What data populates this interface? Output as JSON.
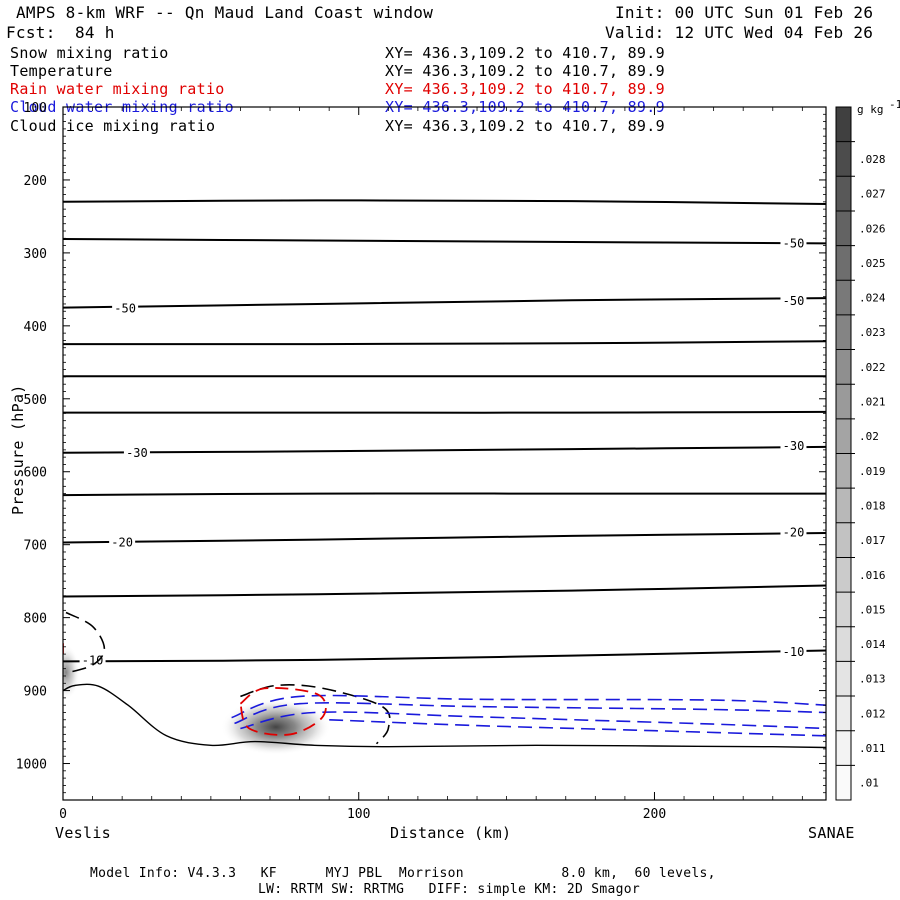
{
  "header": {
    "title": "AMPS 8-km WRF -- Qn Maud Land Coast window",
    "init": "Init: 00 UTC Sun 01 Feb 26",
    "fcst_label": "Fcst:",
    "fcst_value": "84 h",
    "valid": "Valid: 12 UTC Wed 04 Feb 26"
  },
  "fields": [
    {
      "name": "Snow mixing ratio",
      "coords": "XY= 436.3,109.2 to 410.7, 89.9",
      "color": "#000000"
    },
    {
      "name": "Temperature",
      "coords": "XY= 436.3,109.2 to 410.7, 89.9",
      "color": "#000000"
    },
    {
      "name": "Rain water mixing ratio",
      "coords": "XY= 436.3,109.2 to 410.7, 89.9",
      "color": "#e00000"
    },
    {
      "name": "Cloud water mixing ratio",
      "coords": "XY= 436.3,109.2 to 410.7, 89.9",
      "color": "#1a1adc"
    },
    {
      "name": "Cloud ice mixing ratio",
      "coords": "XY= 436.3,109.2 to 410.7, 89.9",
      "color": "#000000"
    }
  ],
  "footer": {
    "line1": "Model Info: V4.3.3   KF      MYJ PBL  Morrison            8.0 km,  60 levels,",
    "line2": "LW: RRTM SW: RRTMG   DIFF: simple KM: 2D Smagor"
  },
  "chart_data": {
    "type": "cross-section",
    "title": "AMPS 8-km WRF -- Qn Maud Land Coast window",
    "xlabel": "Distance (km)",
    "ylabel": "Pressure (hPa)",
    "xlim": [
      0,
      258
    ],
    "ylim": [
      1050,
      100
    ],
    "x_ticks": [
      0,
      100,
      200
    ],
    "y_ticks": [
      100,
      200,
      300,
      400,
      500,
      600,
      700,
      800,
      900,
      1000
    ],
    "x_endpoint_labels": {
      "left": "Veslis",
      "right": "SANAE"
    },
    "colorbar": {
      "unit_label": "g kg",
      "unit_exponent": "-1",
      "levels": [
        ".01",
        ".011",
        ".012",
        ".013",
        ".014",
        ".015",
        ".016",
        ".017",
        ".018",
        ".019",
        ".02",
        ".021",
        ".022",
        ".023",
        ".024",
        ".025",
        ".026",
        ".027",
        ".028"
      ],
      "colors": [
        "#fafafa",
        "#f3f3f3",
        "#ececec",
        "#e4e4e4",
        "#dcdcdc",
        "#d4d4d4",
        "#cbcbcb",
        "#c2c2c2",
        "#b8b8b8",
        "#aeaeae",
        "#a4a4a4",
        "#9a9a9a",
        "#8f8f8f",
        "#848484",
        "#797979",
        "#6e6e6e",
        "#636363",
        "#585858",
        "#4c4c4c",
        "#404040"
      ]
    },
    "temperature_contours": [
      {
        "label": "",
        "points": [
          [
            0,
            230
          ],
          [
            86,
            228
          ],
          [
            172,
            229
          ],
          [
            258,
            233
          ]
        ]
      },
      {
        "label": "-50",
        "label_pos": [
          247,
          287
        ],
        "points": [
          [
            0,
            281
          ],
          [
            86,
            283
          ],
          [
            172,
            285
          ],
          [
            258,
            287
          ]
        ]
      },
      {
        "label": "-50",
        "label_pos": [
          21,
          376
        ],
        "points": [
          [
            0,
            375
          ],
          [
            86,
            370
          ],
          [
            172,
            365
          ],
          [
            258,
            362
          ]
        ]
      },
      {
        "label": "-50",
        "label_pos": [
          247,
          366
        ],
        "points": [
          [
            0,
            425
          ],
          [
            86,
            425
          ],
          [
            172,
            424
          ],
          [
            258,
            421
          ]
        ]
      },
      {
        "label": "",
        "points": [
          [
            0,
            469
          ],
          [
            86,
            469
          ],
          [
            172,
            469
          ],
          [
            258,
            469
          ]
        ]
      },
      {
        "label": "",
        "points": [
          [
            0,
            519
          ],
          [
            86,
            519
          ],
          [
            172,
            519
          ],
          [
            258,
            518
          ]
        ]
      },
      {
        "label": "-30",
        "label_pos": [
          25,
          574
        ],
        "points": [
          [
            0,
            574
          ],
          [
            86,
            572
          ],
          [
            172,
            569
          ],
          [
            258,
            566
          ]
        ]
      },
      {
        "label": "-30",
        "label_pos": [
          247,
          565
        ],
        "points": [
          [
            0,
            632
          ],
          [
            86,
            630
          ],
          [
            172,
            630
          ],
          [
            258,
            630
          ]
        ]
      },
      {
        "label": "-20",
        "label_pos": [
          20,
          697
        ],
        "points": [
          [
            0,
            697
          ],
          [
            86,
            693
          ],
          [
            172,
            688
          ],
          [
            258,
            684
          ]
        ]
      },
      {
        "label": "-20",
        "label_pos": [
          247,
          683
        ],
        "points": [
          [
            0,
            771
          ],
          [
            86,
            768
          ],
          [
            172,
            763
          ],
          [
            258,
            756
          ]
        ]
      },
      {
        "label": "-10",
        "label_pos": [
          10,
          859
        ],
        "points": [
          [
            0,
            860
          ],
          [
            86,
            858
          ],
          [
            172,
            852
          ],
          [
            258,
            845
          ]
        ]
      },
      {
        "label": "-10",
        "label_pos": [
          247,
          847
        ],
        "points": []
      }
    ],
    "terrain": [
      [
        0,
        900
      ],
      [
        4,
        893
      ],
      [
        12,
        894
      ],
      [
        22,
        920
      ],
      [
        35,
        962
      ],
      [
        50,
        975
      ],
      [
        65,
        970
      ],
      [
        85,
        975
      ],
      [
        110,
        977
      ],
      [
        160,
        975
      ],
      [
        200,
        976
      ],
      [
        240,
        977
      ],
      [
        258,
        978
      ]
    ],
    "snow_contours": [
      {
        "points": [
          [
            1,
            793
          ],
          [
            10,
            812
          ],
          [
            14,
            843
          ],
          [
            10,
            865
          ],
          [
            1,
            876
          ]
        ]
      },
      {
        "points": [
          [
            60,
            908
          ],
          [
            72,
            893
          ],
          [
            88,
            897
          ],
          [
            108,
            922
          ],
          [
            110,
            952
          ],
          [
            106,
            973
          ]
        ]
      }
    ],
    "rain_contours": [
      {
        "points": [
          [
            0,
            835
          ],
          [
            0,
            850
          ]
        ]
      },
      {
        "points": [
          [
            60,
            918
          ],
          [
            68,
            897
          ],
          [
            86,
            905
          ],
          [
            88,
            935
          ],
          [
            77,
            960
          ],
          [
            63,
            952
          ],
          [
            60,
            918
          ]
        ]
      }
    ],
    "cloud_water_contours": [
      {
        "points": [
          [
            57,
            937
          ],
          [
            80,
            908
          ],
          [
            140,
            912
          ],
          [
            220,
            913
          ],
          [
            258,
            920
          ]
        ]
      },
      {
        "points": [
          [
            58,
            945
          ],
          [
            80,
            918
          ],
          [
            140,
            922
          ],
          [
            220,
            926
          ],
          [
            258,
            930
          ]
        ]
      },
      {
        "points": [
          [
            60,
            952
          ],
          [
            85,
            930
          ],
          [
            140,
            936
          ],
          [
            220,
            946
          ],
          [
            258,
            952
          ]
        ]
      },
      {
        "points": [
          [
            90,
            940
          ],
          [
            140,
            948
          ],
          [
            200,
            955
          ],
          [
            258,
            962
          ]
        ]
      }
    ],
    "shaded_maxima": [
      {
        "x": 72,
        "p": 950,
        "peak": ".018"
      },
      {
        "x": 1,
        "p": 875,
        "peak": ".013"
      }
    ]
  }
}
